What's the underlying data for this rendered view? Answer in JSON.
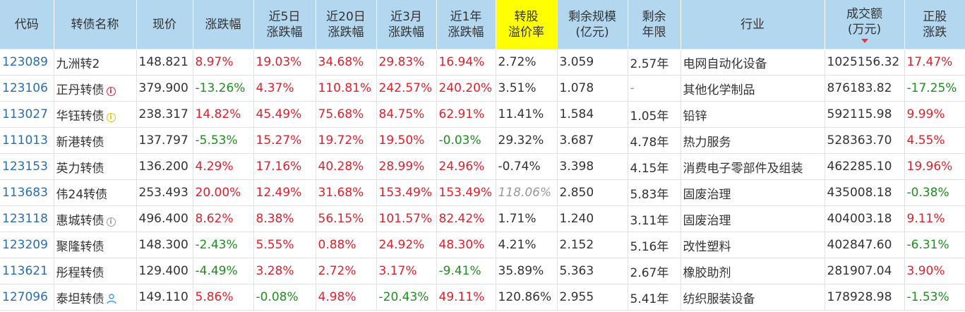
{
  "headers": {
    "code": "代码",
    "name": "转债名称",
    "price": "现价",
    "change": "涨跌幅",
    "change_5d_l1": "近5日",
    "change_5d_l2": "涨跌幅",
    "change_20d_l1": "近20日",
    "change_20d_l2": "涨跌幅",
    "change_3m_l1": "近3月",
    "change_3m_l2": "涨跌幅",
    "change_1y_l1": "近1年",
    "change_1y_l2": "涨跌幅",
    "premium_l1": "转股",
    "premium_l2": "溢价率",
    "scale_l1": "剩余规模",
    "scale_l2": "(亿元)",
    "term_l1": "剩余",
    "term_l2": "年限",
    "industry": "行业",
    "volume_l1": "成交额",
    "volume_l2": "(万元)",
    "stock_change_l1": "正股",
    "stock_change_l2": "涨跌"
  },
  "colors": {
    "header_bg": "#b3d7ef",
    "highlight": "#ffff00",
    "up": "#e0202a",
    "down": "#1f8f1f",
    "code": "#2a6eb0"
  },
  "rows": [
    {
      "code": "123089",
      "name": "九洲转2",
      "badge": "",
      "price": "148.821",
      "change": "8.97%",
      "change_5d": "19.03%",
      "change_20d": "34.68%",
      "change_3m": "29.83%",
      "change_1y": "16.94%",
      "premium": "2.72%",
      "scale": "3.059",
      "term": "2.57年",
      "industry": "电网自动化设备",
      "volume": "1025156.32",
      "stock_change": "17.47%"
    },
    {
      "code": "123106",
      "name": "正丹转债",
      "badge": "red-info-icon",
      "price": "379.900",
      "change": "-13.26%",
      "change_5d": "4.37%",
      "change_20d": "110.81%",
      "change_3m": "242.57%",
      "change_1y": "240.20%",
      "premium": "3.51%",
      "scale": "1.078",
      "term": "-",
      "industry": "其他化学制品",
      "volume": "876183.82",
      "stock_change": "-17.25%"
    },
    {
      "code": "113027",
      "name": "华钰转债",
      "badge": "yellow-info-icon",
      "price": "238.317",
      "change": "14.82%",
      "change_5d": "45.49%",
      "change_20d": "75.68%",
      "change_3m": "84.75%",
      "change_1y": "62.91%",
      "premium": "11.41%",
      "scale": "1.584",
      "term": "1.05年",
      "industry": "铅锌",
      "volume": "592115.98",
      "stock_change": "9.99%"
    },
    {
      "code": "111013",
      "name": "新港转债",
      "badge": "",
      "price": "137.797",
      "change": "-5.53%",
      "change_5d": "15.27%",
      "change_20d": "19.72%",
      "change_3m": "19.50%",
      "change_1y": "-0.03%",
      "premium": "29.32%",
      "scale": "3.687",
      "term": "4.78年",
      "industry": "热力服务",
      "volume": "528363.70",
      "stock_change": "4.55%"
    },
    {
      "code": "123153",
      "name": "英力转债",
      "badge": "",
      "price": "136.200",
      "change": "4.29%",
      "change_5d": "17.16%",
      "change_20d": "40.28%",
      "change_3m": "28.99%",
      "change_1y": "24.96%",
      "premium": "-0.74%",
      "scale": "3.398",
      "term": "4.15年",
      "industry": "消费电子零部件及组装",
      "volume": "462285.10",
      "stock_change": "19.96%"
    },
    {
      "code": "113683",
      "name": "伟24转债",
      "badge": "",
      "price": "253.493",
      "change": "20.00%",
      "change_5d": "12.49%",
      "change_20d": "31.68%",
      "change_3m": "153.49%",
      "change_1y": "153.49%",
      "premium": "118.06%",
      "scale": "2.850",
      "term": "5.83年",
      "industry": "固废治理",
      "volume": "435008.18",
      "stock_change": "-0.38%"
    },
    {
      "code": "123118",
      "name": "惠城转债",
      "badge": "gray-info-icon",
      "price": "496.400",
      "change": "8.62%",
      "change_5d": "8.38%",
      "change_20d": "56.15%",
      "change_3m": "101.57%",
      "change_1y": "82.42%",
      "premium": "1.71%",
      "scale": "1.240",
      "term": "3.11年",
      "industry": "固废治理",
      "volume": "404003.18",
      "stock_change": "9.11%"
    },
    {
      "code": "123209",
      "name": "聚隆转债",
      "badge": "",
      "price": "148.300",
      "change": "-2.43%",
      "change_5d": "5.55%",
      "change_20d": "0.88%",
      "change_3m": "24.92%",
      "change_1y": "48.30%",
      "premium": "4.21%",
      "scale": "2.152",
      "term": "5.16年",
      "industry": "改性塑料",
      "volume": "402847.60",
      "stock_change": "-6.31%"
    },
    {
      "code": "113621",
      "name": "彤程转债",
      "badge": "",
      "price": "129.400",
      "change": "-4.49%",
      "change_5d": "3.28%",
      "change_20d": "2.72%",
      "change_3m": "3.17%",
      "change_1y": "-9.41%",
      "premium": "35.89%",
      "scale": "5.363",
      "term": "2.67年",
      "industry": "橡胶助剂",
      "volume": "281907.04",
      "stock_change": "3.90%"
    },
    {
      "code": "127096",
      "name": "泰坦转债",
      "badge": "user-icon",
      "price": "149.110",
      "change": "5.86%",
      "change_5d": "-0.08%",
      "change_20d": "4.98%",
      "change_3m": "-20.43%",
      "change_1y": "49.11%",
      "premium": "120.86%",
      "scale": "2.955",
      "term": "5.41年",
      "industry": "纺织服装设备",
      "volume": "178928.98",
      "stock_change": "-1.53%"
    }
  ]
}
